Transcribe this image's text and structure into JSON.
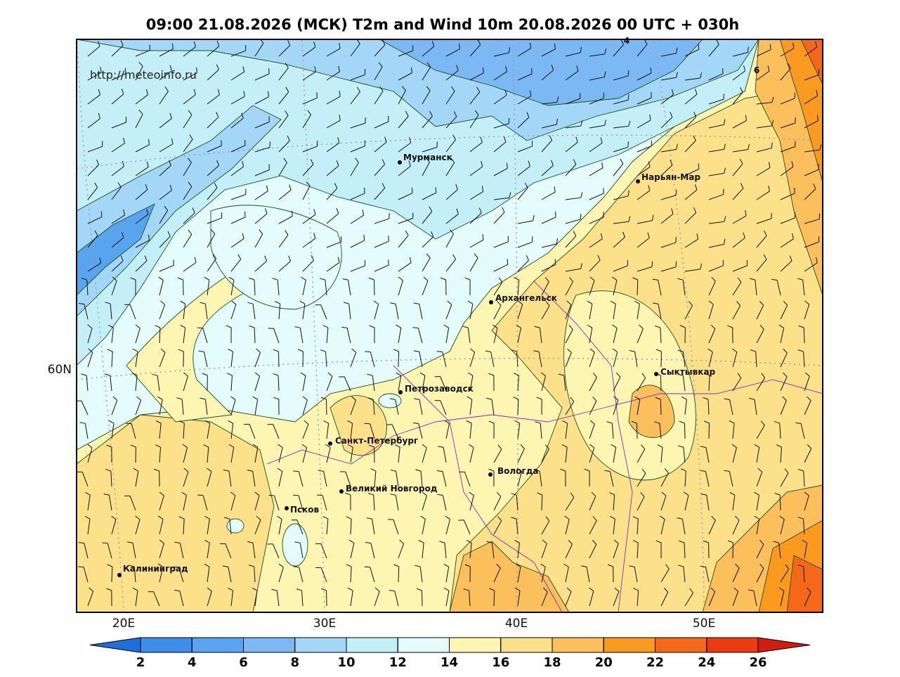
{
  "title": "09:00 21.08.2026 (МСК) T2m and Wind 10m 20.08.2026 00 UTC + 030h",
  "source": "http://meteoinfo.ru",
  "map": {
    "cities": [
      "Мурманск",
      "Нарьян-Мар",
      "Архангельск",
      "Сыктывкар",
      "Петрозаводск",
      "Санкт-Петербург",
      "Вологда",
      "Великий Новгород",
      "Псков",
      "Калининград"
    ],
    "lon_labels": [
      "20E",
      "30E",
      "40E",
      "50E"
    ],
    "lat_labels": [
      "60N"
    ],
    "contour_labels": [
      "6",
      "4"
    ]
  },
  "colorbar": {
    "ticks": [
      2,
      4,
      6,
      8,
      10,
      12,
      14,
      16,
      18,
      20,
      22,
      24,
      26
    ],
    "colors": [
      "#1d6fdc",
      "#3c8ee8",
      "#5aa3ef",
      "#7cb8f4",
      "#a3d6f7",
      "#c4eff8",
      "#e4fcfb",
      "#fdf6b2",
      "#fde18a",
      "#fbbf5b",
      "#fa9a1f",
      "#f56818",
      "#ec3b10",
      "#d01d0c"
    ]
  }
}
